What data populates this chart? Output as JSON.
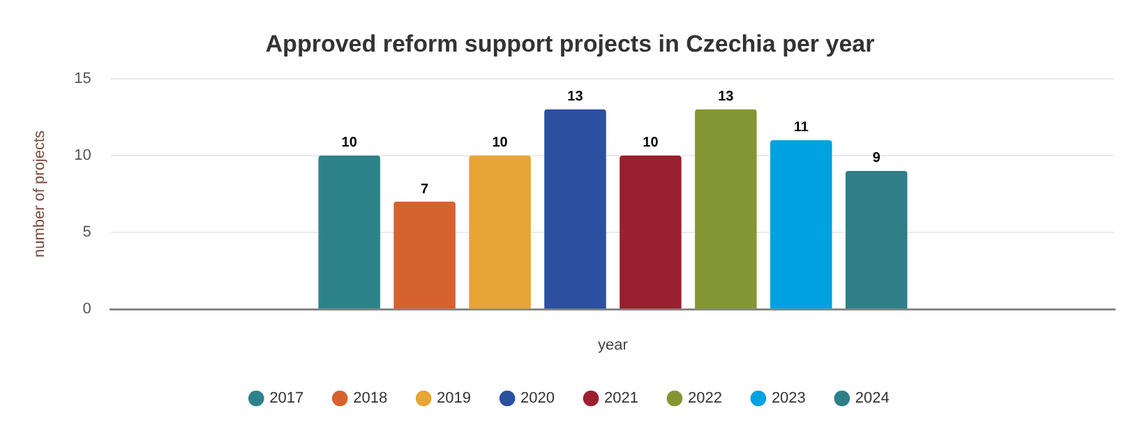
{
  "chart_data": {
    "type": "bar",
    "title": "Approved reform support projects in Czechia per year",
    "xlabel": "year",
    "ylabel": "number of projects",
    "categories": [
      null
    ],
    "series": [
      {
        "name": "2017",
        "color": "#2e838b",
        "values": [
          10
        ]
      },
      {
        "name": "2018",
        "color": "#d6622e",
        "values": [
          7
        ]
      },
      {
        "name": "2019",
        "color": "#e6a534",
        "values": [
          10
        ]
      },
      {
        "name": "2020",
        "color": "#2c50a0",
        "values": [
          13
        ]
      },
      {
        "name": "2021",
        "color": "#9a1f2f",
        "values": [
          10
        ]
      },
      {
        "name": "2022",
        "color": "#849633",
        "values": [
          13
        ]
      },
      {
        "name": "2023",
        "color": "#00a1e0",
        "values": [
          11
        ]
      },
      {
        "name": "2024",
        "color": "#2e7f87",
        "values": [
          9
        ]
      }
    ],
    "ylim": [
      0,
      15
    ],
    "yticks": [
      0,
      5,
      10,
      15
    ],
    "grid": "y",
    "legend": "bottom",
    "data_labels": true
  }
}
